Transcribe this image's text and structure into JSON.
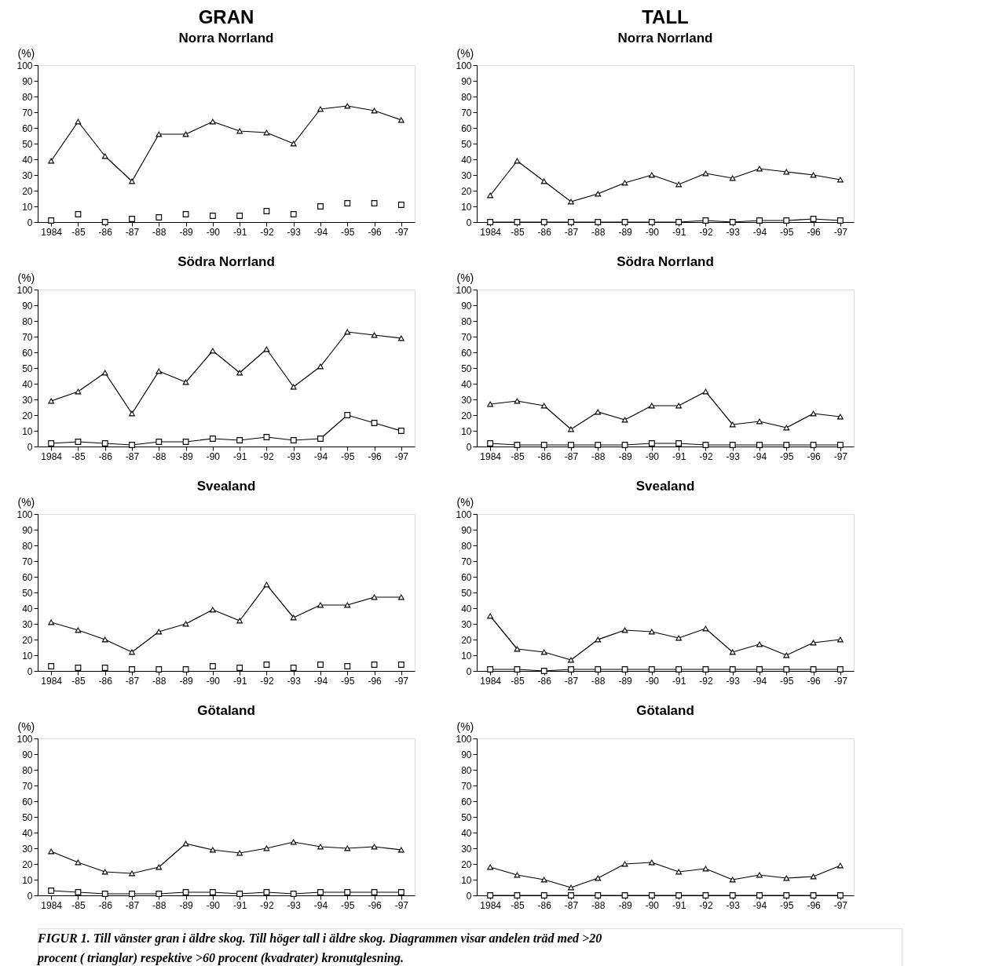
{
  "chart_data": [
    {
      "type": "line",
      "title": "GRAN",
      "subtitle": "Norra Norrland",
      "ylabel": "(%)",
      "categories": [
        "1984",
        "-85",
        "-86",
        "-87",
        "-88",
        "-89",
        "-90",
        "-91",
        "-92",
        "-93",
        "-94",
        "-95",
        "-96",
        "-97"
      ],
      "ylim": [
        0,
        100
      ],
      "yticks": [
        0,
        10,
        20,
        30,
        40,
        50,
        60,
        70,
        80,
        90,
        100
      ],
      "grid": false,
      "series": [
        {
          "type": "line",
          "marker": "triangle",
          "color": "#000000",
          "values": [
            39,
            64,
            42,
            26,
            56,
            56,
            64,
            58,
            57,
            50,
            72,
            74,
            71,
            65
          ]
        },
        {
          "type": "scatter",
          "marker": "square",
          "color": "#000000",
          "values": [
            1,
            5,
            0,
            2,
            3,
            5,
            4,
            4,
            7,
            5,
            10,
            12,
            12,
            11
          ]
        }
      ]
    },
    {
      "type": "line",
      "title": "TALL",
      "subtitle": "Norra Norrland",
      "ylabel": "(%)",
      "categories": [
        "1984",
        "-85",
        "-86",
        "-87",
        "-88",
        "-89",
        "-90",
        "-91",
        "-92",
        "-93",
        "-94",
        "-95",
        "-96",
        "-97"
      ],
      "ylim": [
        0,
        100
      ],
      "yticks": [
        0,
        10,
        20,
        30,
        40,
        50,
        60,
        70,
        80,
        90,
        100
      ],
      "grid": false,
      "series": [
        {
          "type": "line",
          "marker": "triangle",
          "color": "#000000",
          "values": [
            17,
            39,
            26,
            13,
            18,
            25,
            30,
            24,
            31,
            28,
            34,
            32,
            30,
            27
          ]
        },
        {
          "type": "line",
          "marker": "square",
          "color": "#000000",
          "values": [
            0,
            0,
            0,
            0,
            0,
            0,
            0,
            0,
            1,
            0,
            1,
            1,
            2,
            1
          ]
        }
      ]
    },
    {
      "type": "line",
      "title": "Södra Norrland",
      "ylabel": "(%)",
      "categories": [
        "1984",
        "-85",
        "-86",
        "-87",
        "-88",
        "-89",
        "-90",
        "-91",
        "-92",
        "-93",
        "-94",
        "-95",
        "-96",
        "-97"
      ],
      "ylim": [
        0,
        100
      ],
      "yticks": [
        0,
        10,
        20,
        30,
        40,
        50,
        60,
        70,
        80,
        90,
        100
      ],
      "grid": false,
      "series": [
        {
          "type": "line",
          "marker": "triangle",
          "color": "#000000",
          "values": [
            29,
            35,
            47,
            21,
            48,
            41,
            61,
            47,
            62,
            38,
            51,
            73,
            71,
            69
          ]
        },
        {
          "type": "line",
          "marker": "square",
          "color": "#000000",
          "values": [
            2,
            3,
            2,
            1,
            3,
            3,
            5,
            4,
            6,
            4,
            5,
            20,
            15,
            10
          ]
        }
      ]
    },
    {
      "type": "line",
      "title": "Södra Norrland",
      "ylabel": "(%)",
      "categories": [
        "1984",
        "-85",
        "-86",
        "-87",
        "-88",
        "-89",
        "-90",
        "-91",
        "-92",
        "-93",
        "-94",
        "-95",
        "-96",
        "-97"
      ],
      "ylim": [
        0,
        100
      ],
      "yticks": [
        0,
        10,
        20,
        30,
        40,
        50,
        60,
        70,
        80,
        90,
        100
      ],
      "grid": false,
      "series": [
        {
          "type": "line",
          "marker": "triangle",
          "color": "#000000",
          "values": [
            27,
            29,
            26,
            11,
            22,
            17,
            26,
            26,
            35,
            14,
            16,
            12,
            21,
            19
          ]
        },
        {
          "type": "line",
          "marker": "square",
          "color": "#000000",
          "values": [
            2,
            1,
            1,
            1,
            1,
            1,
            2,
            2,
            1,
            1,
            1,
            1,
            1,
            1
          ]
        }
      ]
    },
    {
      "type": "line",
      "title": "Svealand",
      "ylabel": "(%)",
      "categories": [
        "1984",
        "-85",
        "-86",
        "-87",
        "-88",
        "-89",
        "-90",
        "-91",
        "-92",
        "-93",
        "-94",
        "-95",
        "-96",
        "-97"
      ],
      "ylim": [
        0,
        100
      ],
      "yticks": [
        0,
        10,
        20,
        30,
        40,
        50,
        60,
        70,
        80,
        90,
        100
      ],
      "grid": false,
      "series": [
        {
          "type": "line",
          "marker": "triangle",
          "color": "#000000",
          "values": [
            31,
            26,
            20,
            12,
            25,
            30,
            39,
            32,
            55,
            34,
            42,
            42,
            47,
            47
          ]
        },
        {
          "type": "scatter",
          "marker": "square",
          "color": "#000000",
          "values": [
            3,
            2,
            2,
            1,
            1,
            1,
            3,
            2,
            4,
            2,
            4,
            3,
            4,
            4
          ]
        }
      ]
    },
    {
      "type": "line",
      "title": "Svealand",
      "ylabel": "(%)",
      "categories": [
        "1984",
        "-85",
        "-86",
        "-87",
        "-88",
        "-89",
        "-90",
        "-91",
        "-92",
        "-93",
        "-94",
        "-95",
        "-96",
        "-97"
      ],
      "ylim": [
        0,
        100
      ],
      "yticks": [
        0,
        10,
        20,
        30,
        40,
        50,
        60,
        70,
        80,
        90,
        100
      ],
      "grid": false,
      "series": [
        {
          "type": "line",
          "marker": "triangle",
          "color": "#000000",
          "values": [
            35,
            14,
            12,
            7,
            20,
            26,
            25,
            21,
            27,
            12,
            17,
            10,
            18,
            20
          ]
        },
        {
          "type": "line",
          "marker": "square",
          "color": "#000000",
          "values": [
            1,
            1,
            0,
            1,
            1,
            1,
            1,
            1,
            1,
            1,
            1,
            1,
            1,
            1
          ]
        }
      ]
    },
    {
      "type": "line",
      "title": "Götaland",
      "ylabel": "(%)",
      "categories": [
        "1984",
        "-85",
        "-86",
        "-87",
        "-88",
        "-89",
        "-90",
        "-91",
        "-92",
        "-93",
        "-94",
        "-95",
        "-96",
        "-97"
      ],
      "ylim": [
        0,
        100
      ],
      "yticks": [
        0,
        10,
        20,
        30,
        40,
        50,
        60,
        70,
        80,
        90,
        100
      ],
      "grid": false,
      "series": [
        {
          "type": "line",
          "marker": "triangle",
          "color": "#000000",
          "values": [
            28,
            21,
            15,
            14,
            18,
            33,
            29,
            27,
            30,
            34,
            31,
            30,
            31,
            29
          ]
        },
        {
          "type": "line",
          "marker": "square",
          "color": "#000000",
          "values": [
            3,
            2,
            1,
            1,
            1,
            2,
            2,
            1,
            2,
            1,
            2,
            2,
            2,
            2
          ]
        }
      ]
    },
    {
      "type": "line",
      "title": "Götaland",
      "ylabel": "(%)",
      "categories": [
        "1984",
        "-85",
        "-86",
        "-87",
        "-88",
        "-89",
        "-90",
        "-91",
        "-92",
        "-93",
        "-94",
        "-95",
        "-96",
        "-97"
      ],
      "ylim": [
        0,
        100
      ],
      "yticks": [
        0,
        10,
        20,
        30,
        40,
        50,
        60,
        70,
        80,
        90,
        100
      ],
      "grid": false,
      "series": [
        {
          "type": "line",
          "marker": "triangle",
          "color": "#000000",
          "values": [
            18,
            13,
            10,
            5,
            11,
            20,
            21,
            15,
            17,
            10,
            13,
            11,
            12,
            19
          ]
        },
        {
          "type": "line",
          "marker": "square",
          "color": "#000000",
          "values": [
            0,
            0,
            0,
            0,
            0,
            0,
            0,
            0,
            0,
            0,
            0,
            0,
            0,
            0
          ]
        }
      ]
    },
    {
      "type": "other",
      "annotations": [
        "FIGUR 1. Till vänster gran i äldre skog. Till höger tall i äldre skog. Diagrammen visar andelen träd med >20",
        "procent ( trianglar) respektive >60 procent (kvadrater) kronutglesning."
      ]
    }
  ]
}
